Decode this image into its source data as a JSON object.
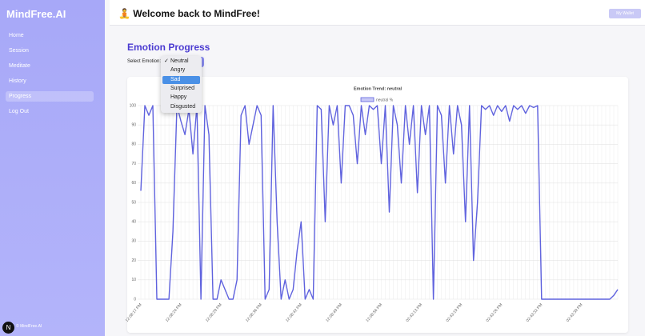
{
  "sidebar": {
    "brand": "MindFree.AI",
    "nav": [
      "Home",
      "Session",
      "Meditate",
      "History",
      "Progress",
      "Log Out"
    ],
    "active": 4,
    "logo_badge": "N",
    "footer": "© MindFree.AI"
  },
  "header": {
    "title": "🧘 Welcome back to MindFree!",
    "button": "My Wallet"
  },
  "page": {
    "heading": "Emotion Progress",
    "select_label": "Select Emotion:",
    "dropdown": {
      "check": "✓",
      "options": [
        "Neutral",
        "Angry",
        "Sad",
        "Surprised",
        "Happy",
        "Disgusted"
      ],
      "selected": 0,
      "highlighted": 2
    }
  },
  "chart_data": {
    "type": "line",
    "title": "Emotion Trend: neutral",
    "grid": true,
    "series": [
      {
        "name": "neutral %",
        "color": "#5f62de",
        "values": [
          56,
          100,
          95,
          100,
          0,
          0,
          0,
          0,
          35,
          100,
          92,
          85,
          98,
          75,
          100,
          0,
          100,
          85,
          0,
          0,
          10,
          5,
          0,
          0,
          10,
          95,
          100,
          80,
          90,
          100,
          95,
          0,
          5,
          100,
          40,
          0,
          10,
          0,
          5,
          25,
          40,
          0,
          5,
          0,
          100,
          98,
          40,
          100,
          90,
          100,
          60,
          100,
          100,
          95,
          70,
          100,
          85,
          100,
          98,
          100,
          70,
          100,
          45,
          100,
          90,
          60,
          100,
          80,
          100,
          55,
          100,
          85,
          100,
          0,
          100,
          95,
          60,
          100,
          75,
          100,
          90,
          40,
          100,
          20,
          50,
          100,
          98,
          100,
          95,
          100,
          97,
          100,
          92,
          100,
          98,
          100,
          96,
          100,
          99,
          100,
          0,
          0,
          0,
          0,
          0,
          0,
          0,
          0,
          0,
          0,
          0,
          0,
          0,
          0,
          0,
          0,
          0,
          0,
          2,
          5
        ]
      }
    ],
    "categories": [
      "12:08:17 PM",
      null,
      null,
      null,
      null,
      null,
      null,
      null,
      null,
      null,
      "12:08:24 PM",
      null,
      null,
      null,
      null,
      null,
      null,
      null,
      null,
      null,
      "12:08:29 PM",
      null,
      null,
      null,
      null,
      null,
      null,
      null,
      null,
      null,
      "12:08:36 PM",
      null,
      null,
      null,
      null,
      null,
      null,
      null,
      null,
      null,
      "12:08:42 PM",
      null,
      null,
      null,
      null,
      null,
      null,
      null,
      null,
      null,
      "12:08:49 PM",
      null,
      null,
      null,
      null,
      null,
      null,
      null,
      null,
      null,
      "12:08:56 PM",
      null,
      null,
      null,
      null,
      null,
      null,
      null,
      null,
      null,
      "02:43:13 PM",
      null,
      null,
      null,
      null,
      null,
      null,
      null,
      null,
      null,
      "02:43:19 PM",
      null,
      null,
      null,
      null,
      null,
      null,
      null,
      null,
      null,
      "02:43:26 PM",
      null,
      null,
      null,
      null,
      null,
      null,
      null,
      null,
      null,
      "02:43:32 PM",
      null,
      null,
      null,
      null,
      null,
      null,
      null,
      null,
      null,
      "02:43:39 PM",
      null,
      null,
      null,
      null,
      null,
      null,
      null,
      null,
      null
    ],
    "ylim": [
      0,
      100
    ],
    "yticks": [
      0,
      10,
      20,
      30,
      40,
      50,
      60,
      70,
      80,
      90,
      100
    ]
  }
}
